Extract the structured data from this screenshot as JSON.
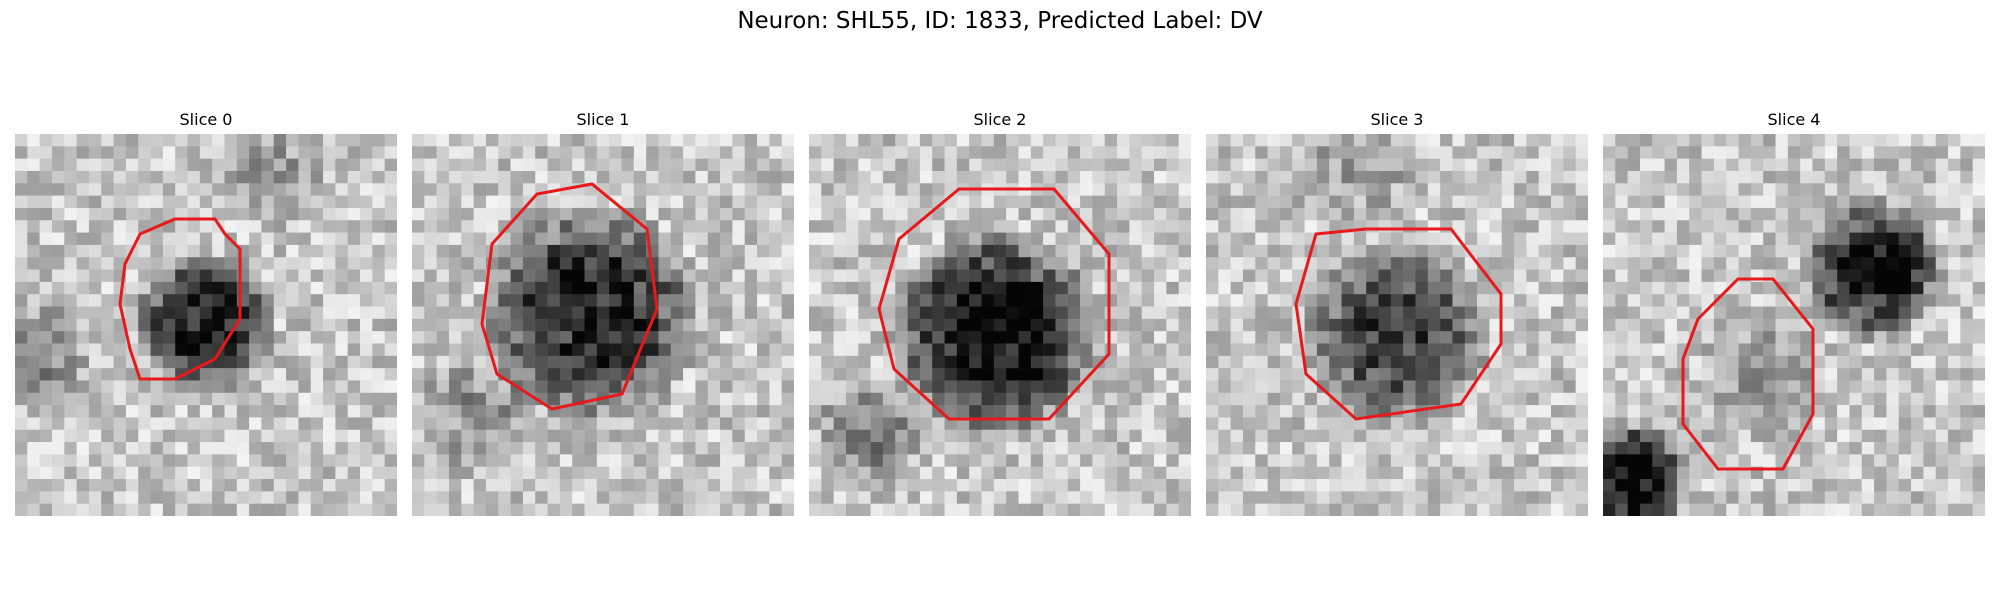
{
  "figure": {
    "suptitle": "Neuron: SHL55, ID: 1833, Predicted Label: DV",
    "contour_color": "#e8191a",
    "colormap": "grayscale"
  },
  "slices": [
    {
      "title": "Slice 0"
    },
    {
      "title": "Slice 1"
    },
    {
      "title": "Slice 2"
    },
    {
      "title": "Slice 3"
    },
    {
      "title": "Slice 4"
    }
  ]
}
